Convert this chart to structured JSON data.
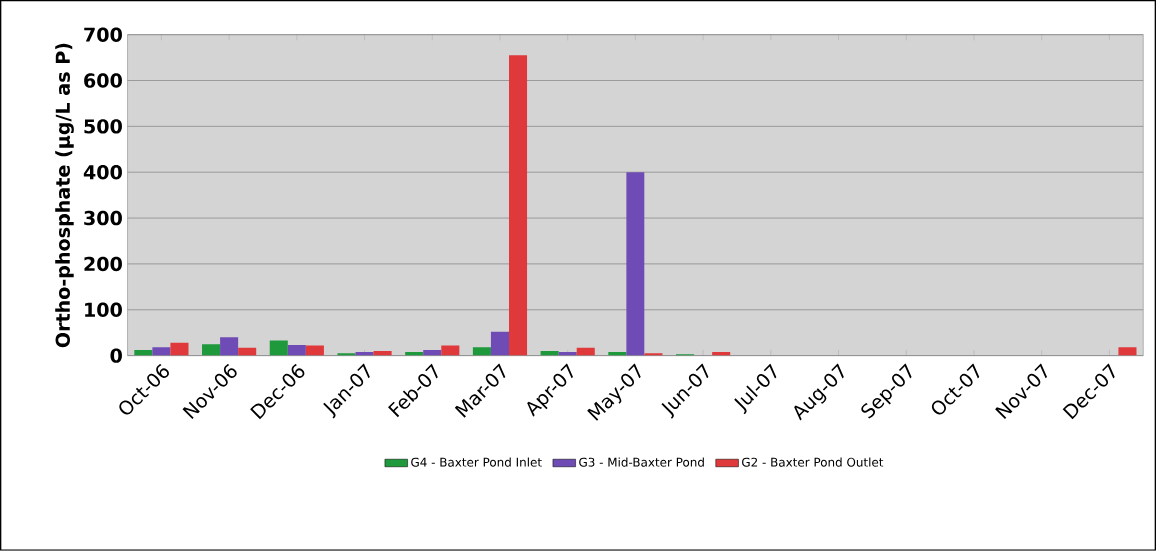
{
  "chart_data": {
    "type": "bar",
    "ylabel": "Ortho-phosphate (µg/L as P)",
    "categories": [
      "Oct-06",
      "Nov-06",
      "Dec-06",
      "Jan-07",
      "Feb-07",
      "Mar-07",
      "Apr-07",
      "May-07",
      "Jun-07",
      "Jul-07",
      "Aug-07",
      "Sep-07",
      "Oct-07",
      "Nov-07",
      "Dec-07"
    ],
    "series": [
      {
        "name": "G4 - Baxter Pond Inlet",
        "color": "#1e9a3c",
        "values": [
          12,
          25,
          33,
          5,
          8,
          18,
          10,
          8,
          3,
          null,
          null,
          null,
          null,
          null,
          null
        ]
      },
      {
        "name": "G3 - Mid-Baxter Pond",
        "color": "#6f4cb5",
        "values": [
          18,
          40,
          23,
          8,
          12,
          52,
          8,
          400,
          null,
          null,
          null,
          null,
          null,
          null,
          null
        ]
      },
      {
        "name": "G2 - Baxter Pond Outlet",
        "color": "#e0393b",
        "values": [
          28,
          17,
          22,
          10,
          22,
          655,
          17,
          5,
          8,
          null,
          null,
          null,
          null,
          null,
          18
        ]
      }
    ],
    "ylim": [
      0,
      700
    ],
    "yticks": [
      0,
      100,
      200,
      300,
      400,
      500,
      600,
      700
    ],
    "grid": "y",
    "legend": "bottom"
  }
}
